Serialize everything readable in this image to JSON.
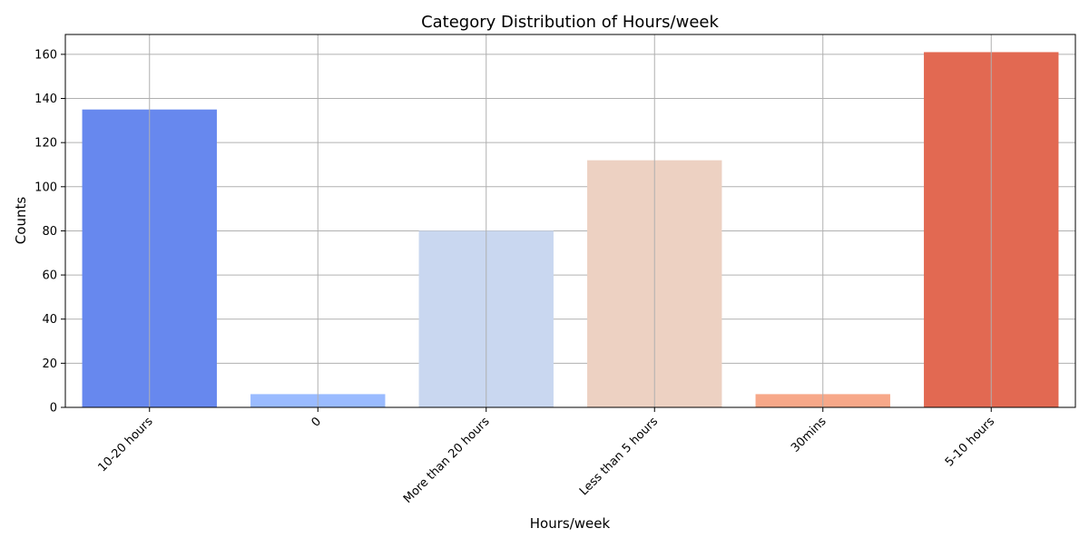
{
  "chart_data": {
    "type": "bar",
    "title": "Category Distribution of Hours/week",
    "xlabel": "Hours/week",
    "ylabel": "Counts",
    "categories": [
      "10-20 hours",
      "0",
      "More than 20 hours",
      "Less than 5 hours",
      "30mins",
      "5-10 hours"
    ],
    "values": [
      135,
      6,
      80,
      112,
      6,
      161
    ],
    "colors": [
      "#6788ee",
      "#9abbff",
      "#c9d7f0",
      "#edd1c2",
      "#f7a889",
      "#e26952"
    ],
    "ylim": [
      0,
      169
    ],
    "yticks": [
      0,
      20,
      40,
      60,
      80,
      100,
      120,
      140,
      160
    ],
    "grid": true,
    "legend": "none",
    "x_tick_rotation": 45
  }
}
